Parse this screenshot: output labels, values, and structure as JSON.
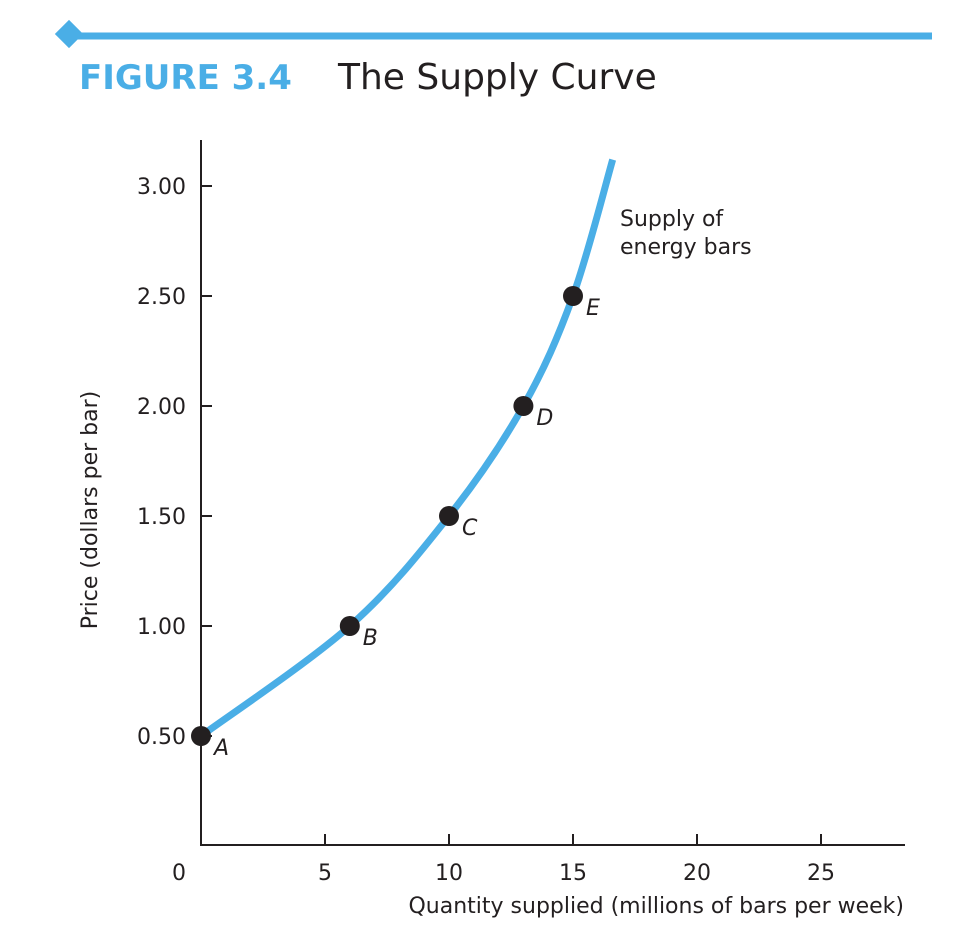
{
  "figure": {
    "label": "FIGURE 3.4",
    "title": "The Supply Curve",
    "accent_color": "#4aaee6"
  },
  "chart_data": {
    "type": "line",
    "title": "The Supply Curve",
    "xlabel": "Quantity supplied (millions of bars per week)",
    "ylabel": "Price (dollars per bar)",
    "xlim": [
      0,
      28
    ],
    "ylim": [
      0,
      3.2
    ],
    "x_ticks": [
      0,
      5,
      10,
      15,
      20,
      25
    ],
    "x_tick_labels": [
      "0",
      "5",
      "10",
      "15",
      "20",
      "25"
    ],
    "y_ticks": [
      0.5,
      1.0,
      1.5,
      2.0,
      2.5,
      3.0
    ],
    "y_tick_labels": [
      "0.50",
      "1.00",
      "1.50",
      "2.00",
      "2.50",
      "3.00"
    ],
    "grid": false,
    "series": [
      {
        "name": "Supply of energy bars",
        "label_lines": [
          "Supply of",
          "energy bars"
        ],
        "color": "#4aaee6",
        "curve": [
          {
            "x": 0,
            "y": 0.5
          },
          {
            "x": 6,
            "y": 1.0
          },
          {
            "x": 10,
            "y": 1.5
          },
          {
            "x": 13,
            "y": 2.0
          },
          {
            "x": 15,
            "y": 2.5
          },
          {
            "x": 16.6,
            "y": 3.12
          }
        ],
        "points": [
          {
            "label": "A",
            "x": 0,
            "y": 0.5
          },
          {
            "label": "B",
            "x": 6,
            "y": 1.0
          },
          {
            "label": "C",
            "x": 10,
            "y": 1.5
          },
          {
            "label": "D",
            "x": 13,
            "y": 2.0
          },
          {
            "label": "E",
            "x": 15,
            "y": 2.5
          }
        ]
      }
    ]
  }
}
